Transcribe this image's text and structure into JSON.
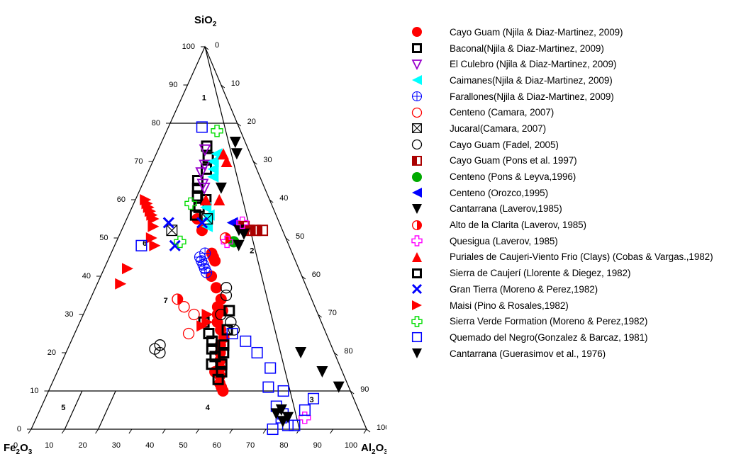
{
  "chart_data": {
    "type": "ternary-scatter",
    "apex_labels": {
      "top": {
        "main": "SiO",
        "sub": "2"
      },
      "left": {
        "main": "Fe",
        "sub1": "2",
        "mid": "O",
        "sub2": "3"
      },
      "right": {
        "main": "Al",
        "sub1": "2",
        "mid": "O",
        "sub2": "3"
      }
    },
    "ticks": {
      "sio2": [
        "0",
        "10",
        "20",
        "30",
        "40",
        "50",
        "60",
        "70",
        "80",
        "90",
        "100"
      ],
      "fe2o3": [
        "100",
        "90",
        "80",
        "70",
        "60",
        "50",
        "40",
        "30",
        "20",
        "10",
        "0"
      ],
      "al2o3": [
        "0",
        "10",
        "20",
        "30",
        "40",
        "50",
        "60",
        "70",
        "80",
        "90",
        "100"
      ]
    },
    "fields": [
      "1",
      "2",
      "3",
      "4",
      "5",
      "6",
      "7"
    ],
    "boundaries": [
      {
        "from": {
          "s": 80,
          "a": 0
        },
        "to": {
          "s": 80,
          "a": 20
        }
      },
      {
        "from": {
          "s": 100,
          "a": 0
        },
        "to": {
          "s": 0,
          "a": 80
        }
      },
      {
        "from": {
          "s": 10,
          "a": 0
        },
        "to": {
          "s": 10,
          "a": 90
        }
      },
      {
        "from": {
          "s": 0,
          "a": 10
        },
        "to": {
          "s": 10,
          "a": 10
        }
      },
      {
        "from": {
          "s": 0,
          "a": 20
        },
        "to": {
          "s": 10,
          "a": 20
        }
      }
    ],
    "series": [
      {
        "name": "Cayo Guam (Njila & Diaz-Martinez, 2009)",
        "marker": "filled-circle",
        "color": "#ff0000",
        "points": [
          [
            55,
            21
          ],
          [
            52,
            24
          ],
          [
            46,
            30
          ],
          [
            45,
            31
          ],
          [
            44,
            32
          ],
          [
            40,
            33
          ],
          [
            37,
            36
          ],
          [
            34,
            39
          ],
          [
            32,
            39
          ],
          [
            30,
            40
          ],
          [
            31,
            41
          ],
          [
            28,
            41
          ],
          [
            26,
            43
          ],
          [
            24,
            45
          ],
          [
            22,
            45
          ],
          [
            20,
            46
          ],
          [
            18,
            47
          ],
          [
            16,
            48
          ],
          [
            14,
            49
          ],
          [
            12,
            50
          ],
          [
            10,
            52
          ],
          [
            11,
            51
          ],
          [
            15,
            47
          ]
        ]
      },
      {
        "name": "Baconal(Njila & Diaz-Martinez, 2009)",
        "marker": "bold-square",
        "color": "#000000",
        "points": [
          [
            74,
            14
          ],
          [
            71,
            16
          ],
          [
            68,
            17
          ],
          [
            65,
            16
          ],
          [
            63,
            17
          ],
          [
            61,
            18
          ],
          [
            60,
            21
          ],
          [
            58,
            20
          ],
          [
            56,
            20
          ],
          [
            31,
            43
          ],
          [
            26,
            45
          ],
          [
            22,
            46
          ],
          [
            20,
            47
          ],
          [
            17,
            48
          ],
          [
            15,
            49
          ],
          [
            13,
            49
          ],
          [
            23,
            42
          ]
        ]
      },
      {
        "name": "El Culebro (Njila & Diaz-Martinez, 2009)",
        "marker": "open-triangle-down",
        "color": "#9900cc",
        "points": [
          [
            73,
            14
          ],
          [
            69,
            16
          ],
          [
            67,
            16
          ],
          [
            64,
            18
          ],
          [
            63,
            19
          ]
        ]
      },
      {
        "name": "Caimanes(Njila & Diaz-Martinez, 2009)",
        "marker": "filled-triangle-left",
        "color": "#00ffff",
        "points": [
          [
            72,
            18
          ],
          [
            70,
            18
          ],
          [
            68,
            19
          ],
          [
            66,
            20
          ],
          [
            58,
            22
          ],
          [
            56,
            24
          ],
          [
            55,
            24
          ],
          [
            53,
            25
          ]
        ]
      },
      {
        "name": "Farallones(Njila & Diaz-Martinez, 2009)",
        "marker": "crossed-circle",
        "color": "#0000ff",
        "points": [
          [
            46,
            28
          ],
          [
            45,
            27
          ],
          [
            44,
            28
          ],
          [
            43,
            29
          ],
          [
            42,
            30
          ],
          [
            41,
            31
          ]
        ]
      },
      {
        "name": "Centeno (Camara, 2007)",
        "marker": "open-circle",
        "color": "#ff0000",
        "points": [
          [
            32,
            29
          ],
          [
            30,
            33
          ],
          [
            25,
            34
          ]
        ]
      },
      {
        "name": "Jucaral(Camara, 2007)",
        "marker": "crossed-square",
        "color": "#000000",
        "points": [
          [
            55,
            24
          ],
          [
            52,
            15
          ]
        ]
      },
      {
        "name": "Cayo Guam (Fadel, 2005)",
        "marker": "open-circle",
        "color": "#000000",
        "points": [
          [
            37,
            39
          ],
          [
            35,
            40
          ],
          [
            30,
            41
          ],
          [
            28,
            45
          ],
          [
            26,
            47
          ],
          [
            21,
            26
          ],
          [
            20,
            28
          ],
          [
            22,
            27
          ]
        ]
      },
      {
        "name": "Cayo Guam (Pons et al. 1997)",
        "marker": "half-filled-square",
        "color": "#aa0000",
        "points": [
          [
            53,
            36
          ],
          [
            52,
            38
          ],
          [
            52,
            40
          ],
          [
            52,
            42
          ]
        ]
      },
      {
        "name": "Centeno (Pons & Leyva,1996)",
        "marker": "filled-circle",
        "color": "#00aa00",
        "points": [
          [
            49,
            35
          ]
        ]
      },
      {
        "name": "Centeno (Orozco,1995)",
        "marker": "filled-triangle-left",
        "color": "#0000ff",
        "points": [
          [
            54,
            32
          ]
        ]
      },
      {
        "name": "Cantarrana (Laverov,1985)",
        "marker": "filled-triangle-down",
        "color": "#000000",
        "points": [
          [
            72,
            24
          ],
          [
            63,
            24
          ],
          [
            52,
            35
          ],
          [
            51,
            37
          ],
          [
            48,
            37
          ]
        ]
      },
      {
        "name": "Alto de la Clarita (Laverov, 1985)",
        "marker": "half-filled-circle",
        "color": "#ff0000",
        "points": [
          [
            34,
            26
          ],
          [
            50,
            32
          ]
        ]
      },
      {
        "name": "Quesigua (Laverov, 1985)",
        "marker": "open-cross",
        "color": "#ff00ff",
        "points": [
          [
            54,
            35
          ],
          [
            49,
            33
          ],
          [
            3,
            80
          ]
        ]
      },
      {
        "name": "Puriales de Caujeri-Viento Frio (Clays) (Cobas & Vargas.,1982)",
        "marker": "filled-triangle-up",
        "color": "#ff0000",
        "points": [
          [
            72,
            20
          ],
          [
            70,
            22
          ],
          [
            60,
            25
          ],
          [
            60,
            21
          ]
        ]
      },
      {
        "name": "Sierra de Caujerí (Llorente & Diegez, 1982)",
        "marker": "bold-square",
        "color": "#000000",
        "points": [
          [
            28,
            37
          ],
          [
            25,
            40
          ],
          [
            23,
            42
          ],
          [
            21,
            43
          ],
          [
            19,
            45
          ],
          [
            17,
            45
          ]
        ]
      },
      {
        "name": "Gran Tierra  (Moreno & Perez,1982)",
        "marker": "x-cross",
        "color": "#0000ff",
        "points": [
          [
            54,
            13
          ],
          [
            48,
            18
          ],
          [
            54,
            23
          ]
        ]
      },
      {
        "name": "Maisi (Pino & Rosales,1982)",
        "marker": "filled-triangle-right",
        "color": "#ff0000",
        "points": [
          [
            60,
            3
          ],
          [
            59,
            4
          ],
          [
            58,
            5
          ],
          [
            57,
            6
          ],
          [
            56,
            7
          ],
          [
            55,
            8
          ],
          [
            53,
            9
          ],
          [
            50,
            10
          ],
          [
            48,
            12
          ],
          [
            42,
            7
          ],
          [
            38,
            7
          ],
          [
            30,
            37
          ],
          [
            28,
            38
          ],
          [
            27,
            37
          ]
        ]
      },
      {
        "name": "Sierra Verde Formation (Moreno & Perez,1982)",
        "marker": "open-cross",
        "color": "#00dd00",
        "points": [
          [
            78,
            15
          ],
          [
            59,
            17
          ],
          [
            49,
            19
          ]
        ]
      },
      {
        "name": "Quemado del Negro(Gonzalez & Barcaz, 1981)",
        "marker": "open-square",
        "color": "#0000ff",
        "points": [
          [
            79,
            10
          ],
          [
            48,
            8
          ],
          [
            25,
            47
          ],
          [
            23,
            52
          ],
          [
            20,
            57
          ],
          [
            16,
            63
          ],
          [
            11,
            65
          ],
          [
            10,
            70
          ],
          [
            6,
            70
          ],
          [
            4,
            73
          ],
          [
            3,
            73
          ],
          [
            5,
            79
          ],
          [
            8,
            80
          ],
          [
            0,
            72
          ],
          [
            1,
            76
          ],
          [
            1,
            78
          ]
        ]
      },
      {
        "name": "Cantarrana (Guerasimov et al., 1976)",
        "marker": "filled-triangle-down",
        "color": "#000000",
        "points": [
          [
            75,
            22
          ],
          [
            20,
            70
          ],
          [
            15,
            79
          ],
          [
            11,
            86
          ],
          [
            5,
            72
          ],
          [
            4,
            71
          ],
          [
            3,
            75
          ],
          [
            2,
            74
          ]
        ]
      }
    ]
  }
}
